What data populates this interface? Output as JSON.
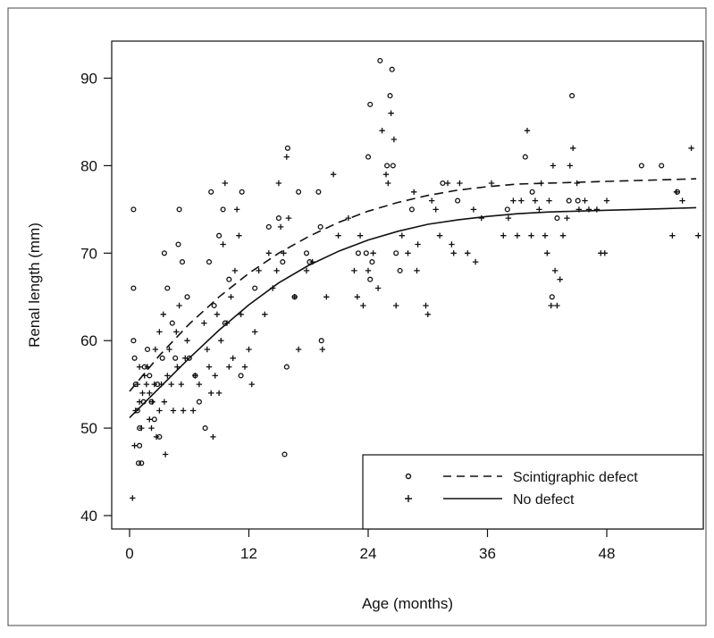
{
  "chart_data": {
    "type": "scatter",
    "title": "",
    "xlabel": "Age (months)",
    "ylabel": "Renal length (mm)",
    "xlim": [
      -2,
      58
    ],
    "ylim": [
      39,
      95
    ],
    "xticks": [
      0,
      12,
      24,
      36,
      48
    ],
    "yticks": [
      40,
      50,
      60,
      70,
      80,
      90
    ],
    "grid": false,
    "legend_position": "bottom-right",
    "series": [
      {
        "name": "Scintigraphic defect",
        "marker": "circle",
        "line_style": "dashed",
        "curve": [
          [
            0,
            54.2
          ],
          [
            3,
            58.3
          ],
          [
            6,
            61.9
          ],
          [
            9,
            65.0
          ],
          [
            12,
            67.7
          ],
          [
            15,
            70.0
          ],
          [
            18,
            71.9
          ],
          [
            21,
            73.5
          ],
          [
            24,
            74.8
          ],
          [
            27,
            75.8
          ],
          [
            30,
            76.6
          ],
          [
            33,
            77.2
          ],
          [
            36,
            77.6
          ],
          [
            39,
            77.9
          ],
          [
            42,
            78.0
          ],
          [
            45,
            78.1
          ],
          [
            48,
            78.2
          ],
          [
            51,
            78.3
          ],
          [
            54,
            78.4
          ],
          [
            57,
            78.5
          ]
        ],
        "points": [
          [
            0.4,
            75
          ],
          [
            0.4,
            66
          ],
          [
            0.4,
            60
          ],
          [
            0.5,
            58
          ],
          [
            0.6,
            55
          ],
          [
            0.8,
            52
          ],
          [
            1,
            50
          ],
          [
            1,
            48
          ],
          [
            0.9,
            46
          ],
          [
            1.2,
            46
          ],
          [
            1.4,
            53
          ],
          [
            1.5,
            57
          ],
          [
            1.8,
            59
          ],
          [
            2,
            56
          ],
          [
            2.2,
            53
          ],
          [
            2.5,
            51
          ],
          [
            2.8,
            55
          ],
          [
            3,
            49
          ],
          [
            3.3,
            58
          ],
          [
            3.5,
            70
          ],
          [
            3.8,
            66
          ],
          [
            4.3,
            62
          ],
          [
            4.6,
            58
          ],
          [
            4.9,
            71
          ],
          [
            5,
            75
          ],
          [
            5.3,
            69
          ],
          [
            5.8,
            65
          ],
          [
            6,
            58
          ],
          [
            6.6,
            56
          ],
          [
            7,
            53
          ],
          [
            7.6,
            50
          ],
          [
            8,
            69
          ],
          [
            8.2,
            77
          ],
          [
            8.5,
            64
          ],
          [
            9,
            72
          ],
          [
            9.4,
            75
          ],
          [
            9.6,
            62
          ],
          [
            10,
            67
          ],
          [
            11.2,
            56
          ],
          [
            11.3,
            77
          ],
          [
            12.6,
            66
          ],
          [
            14,
            73
          ],
          [
            15,
            74
          ],
          [
            15.4,
            69
          ],
          [
            15.9,
            82
          ],
          [
            15.8,
            57
          ],
          [
            15.6,
            47
          ],
          [
            16.6,
            65
          ],
          [
            17,
            77
          ],
          [
            17.8,
            70
          ],
          [
            18.1,
            69
          ],
          [
            19,
            77
          ],
          [
            19.2,
            73
          ],
          [
            19.3,
            60
          ],
          [
            23,
            70
          ],
          [
            23.8,
            70
          ],
          [
            24,
            81
          ],
          [
            24.2,
            87
          ],
          [
            24.2,
            67
          ],
          [
            24.4,
            69
          ],
          [
            25.2,
            92
          ],
          [
            25.9,
            80
          ],
          [
            26.2,
            88
          ],
          [
            26.4,
            91
          ],
          [
            26.5,
            80
          ],
          [
            26.8,
            70
          ],
          [
            27.2,
            68
          ],
          [
            28.4,
            75
          ],
          [
            31.5,
            78
          ],
          [
            33,
            76
          ],
          [
            38,
            75
          ],
          [
            39.8,
            81
          ],
          [
            40.5,
            77
          ],
          [
            42.5,
            65
          ],
          [
            43,
            74
          ],
          [
            44.2,
            76
          ],
          [
            44.5,
            88
          ],
          [
            45.1,
            76
          ],
          [
            51.5,
            80
          ],
          [
            53.5,
            80
          ],
          [
            55.1,
            77
          ]
        ]
      },
      {
        "name": "No defect",
        "marker": "plus",
        "line_style": "solid",
        "curve": [
          [
            0,
            51.2
          ],
          [
            3,
            54.6
          ],
          [
            6,
            58.0
          ],
          [
            9,
            61.2
          ],
          [
            12,
            64.1
          ],
          [
            15,
            66.6
          ],
          [
            18,
            68.6
          ],
          [
            21,
            70.2
          ],
          [
            24,
            71.5
          ],
          [
            27,
            72.5
          ],
          [
            30,
            73.3
          ],
          [
            33,
            73.8
          ],
          [
            36,
            74.2
          ],
          [
            39,
            74.5
          ],
          [
            42,
            74.7
          ],
          [
            45,
            74.8
          ],
          [
            48,
            74.9
          ],
          [
            51,
            75.0
          ],
          [
            54,
            75.1
          ],
          [
            57,
            75.2
          ]
        ],
        "points": [
          [
            0.3,
            42
          ],
          [
            0.5,
            48
          ],
          [
            0.6,
            52
          ],
          [
            0.8,
            55
          ],
          [
            1,
            57
          ],
          [
            1,
            53
          ],
          [
            1.2,
            50
          ],
          [
            1.3,
            54
          ],
          [
            1.5,
            56
          ],
          [
            1.7,
            55
          ],
          [
            1.8,
            57
          ],
          [
            2,
            54
          ],
          [
            2,
            51
          ],
          [
            2.2,
            50
          ],
          [
            2.3,
            53
          ],
          [
            2.5,
            55
          ],
          [
            2.6,
            59
          ],
          [
            2.7,
            49
          ],
          [
            3,
            52
          ],
          [
            3,
            61
          ],
          [
            3.2,
            55
          ],
          [
            3.4,
            63
          ],
          [
            3.5,
            53
          ],
          [
            3.6,
            47
          ],
          [
            3.8,
            56
          ],
          [
            4,
            59
          ],
          [
            4.2,
            55
          ],
          [
            4.4,
            52
          ],
          [
            4.7,
            61
          ],
          [
            4.8,
            57
          ],
          [
            5,
            64
          ],
          [
            5.2,
            55
          ],
          [
            5.4,
            52
          ],
          [
            5.6,
            58
          ],
          [
            5.8,
            60
          ],
          [
            6.4,
            52
          ],
          [
            6.6,
            56
          ],
          [
            7,
            55
          ],
          [
            7.5,
            62
          ],
          [
            7.8,
            59
          ],
          [
            8,
            57
          ],
          [
            8.2,
            54
          ],
          [
            8.4,
            49
          ],
          [
            8.6,
            56
          ],
          [
            8.8,
            63
          ],
          [
            9,
            54
          ],
          [
            9.2,
            60
          ],
          [
            9.4,
            71
          ],
          [
            9.6,
            78
          ],
          [
            9.8,
            62
          ],
          [
            10,
            57
          ],
          [
            10.2,
            65
          ],
          [
            10.4,
            58
          ],
          [
            10.6,
            68
          ],
          [
            10.8,
            75
          ],
          [
            11,
            72
          ],
          [
            11.2,
            63
          ],
          [
            11.6,
            57
          ],
          [
            12,
            59
          ],
          [
            12.3,
            55
          ],
          [
            12.6,
            61
          ],
          [
            13,
            68
          ],
          [
            13.6,
            63
          ],
          [
            14,
            70
          ],
          [
            14.4,
            66
          ],
          [
            14.8,
            68
          ],
          [
            15,
            78
          ],
          [
            15.2,
            73
          ],
          [
            15.5,
            70
          ],
          [
            15.8,
            81
          ],
          [
            16,
            74
          ],
          [
            16.6,
            65
          ],
          [
            17,
            59
          ],
          [
            17.8,
            68
          ],
          [
            18.4,
            69
          ],
          [
            19.4,
            59
          ],
          [
            19.8,
            65
          ],
          [
            20.5,
            79
          ],
          [
            21,
            72
          ],
          [
            22,
            74
          ],
          [
            22.6,
            68
          ],
          [
            22.9,
            65
          ],
          [
            23.2,
            72
          ],
          [
            23.5,
            64
          ],
          [
            24,
            68
          ],
          [
            24.5,
            70
          ],
          [
            25,
            66
          ],
          [
            25.4,
            84
          ],
          [
            25.8,
            79
          ],
          [
            26,
            78
          ],
          [
            26.3,
            86
          ],
          [
            26.6,
            83
          ],
          [
            26.8,
            64
          ],
          [
            27.4,
            72
          ],
          [
            28,
            70
          ],
          [
            28.6,
            77
          ],
          [
            28.9,
            68
          ],
          [
            29,
            71
          ],
          [
            29.8,
            64
          ],
          [
            30,
            63
          ],
          [
            30.4,
            76
          ],
          [
            30.8,
            75
          ],
          [
            31.2,
            72
          ],
          [
            32,
            78
          ],
          [
            32.4,
            71
          ],
          [
            32.6,
            70
          ],
          [
            33.2,
            78
          ],
          [
            34,
            70
          ],
          [
            34.6,
            75
          ],
          [
            34.8,
            69
          ],
          [
            35.4,
            74
          ],
          [
            36.4,
            78
          ],
          [
            37.6,
            72
          ],
          [
            38.1,
            74
          ],
          [
            38.6,
            76
          ],
          [
            39,
            72
          ],
          [
            39.4,
            76
          ],
          [
            40,
            84
          ],
          [
            40.4,
            72
          ],
          [
            40.8,
            76
          ],
          [
            41.2,
            75
          ],
          [
            41.4,
            78
          ],
          [
            41.8,
            72
          ],
          [
            42,
            70
          ],
          [
            42.2,
            76
          ],
          [
            42.4,
            64
          ],
          [
            42.6,
            80
          ],
          [
            42.8,
            68
          ],
          [
            43,
            64
          ],
          [
            43.3,
            67
          ],
          [
            43.6,
            72
          ],
          [
            44,
            74
          ],
          [
            44.3,
            80
          ],
          [
            44.6,
            82
          ],
          [
            45,
            78
          ],
          [
            45.2,
            75
          ],
          [
            45.8,
            76
          ],
          [
            46.2,
            75
          ],
          [
            47,
            75
          ],
          [
            47.4,
            70
          ],
          [
            47.8,
            70
          ],
          [
            48,
            76
          ],
          [
            54.6,
            72
          ],
          [
            55,
            77
          ],
          [
            55.6,
            76
          ],
          [
            56.5,
            82
          ],
          [
            57.2,
            72
          ]
        ]
      }
    ]
  }
}
